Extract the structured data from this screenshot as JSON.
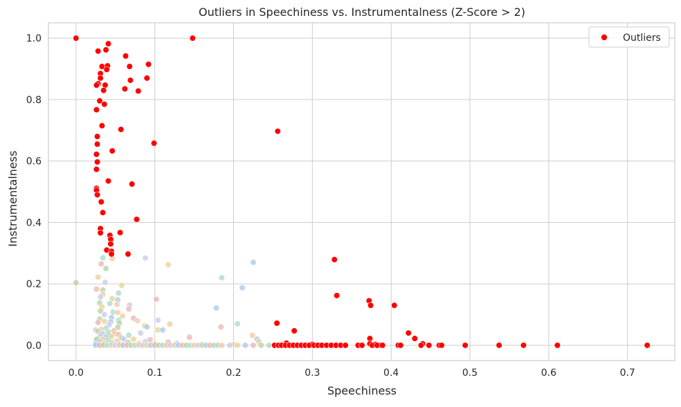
{
  "chart_data": {
    "type": "scatter",
    "title": "Outliers in Speechiness vs. Instrumentalness (Z-Score > 2)",
    "xlabel": "Speechiness",
    "ylabel": "Instrumentalness",
    "xlim": [
      -0.035,
      0.76
    ],
    "ylim": [
      -0.05,
      1.05
    ],
    "xticks": [
      "0.0",
      "0.1",
      "0.2",
      "0.3",
      "0.4",
      "0.5",
      "0.6",
      "0.7"
    ],
    "yticks": [
      "0.0",
      "0.2",
      "0.4",
      "0.6",
      "0.8",
      "1.0"
    ],
    "grid": true,
    "legend": {
      "position": "top-right",
      "entries": [
        "Outliers"
      ]
    },
    "colors": {
      "outliers": "#ff0000",
      "background_points": [
        "#b5d0a0",
        "#a8d8c8",
        "#f0c8a0",
        "#c8c8f0",
        "#e8d090",
        "#a8c8e8",
        "#f0b0b0"
      ]
    },
    "series": [
      {
        "name": "Outliers",
        "color": "#ff0000",
        "points": [
          [
            0.0,
            1.0
          ],
          [
            0.148,
            1.0
          ],
          [
            0.041,
            0.982
          ],
          [
            0.028,
            0.958
          ],
          [
            0.038,
            0.962
          ],
          [
            0.063,
            0.942
          ],
          [
            0.092,
            0.915
          ],
          [
            0.068,
            0.908
          ],
          [
            0.033,
            0.908
          ],
          [
            0.04,
            0.91
          ],
          [
            0.039,
            0.898
          ],
          [
            0.031,
            0.885
          ],
          [
            0.031,
            0.87
          ],
          [
            0.09,
            0.87
          ],
          [
            0.069,
            0.863
          ],
          [
            0.028,
            0.852
          ],
          [
            0.026,
            0.847
          ],
          [
            0.037,
            0.847
          ],
          [
            0.062,
            0.835
          ],
          [
            0.035,
            0.83
          ],
          [
            0.079,
            0.828
          ],
          [
            0.03,
            0.796
          ],
          [
            0.036,
            0.785
          ],
          [
            0.026,
            0.767
          ],
          [
            0.033,
            0.715
          ],
          [
            0.057,
            0.703
          ],
          [
            0.256,
            0.697
          ],
          [
            0.027,
            0.68
          ],
          [
            0.099,
            0.658
          ],
          [
            0.027,
            0.655
          ],
          [
            0.046,
            0.633
          ],
          [
            0.026,
            0.622
          ],
          [
            0.027,
            0.597
          ],
          [
            0.026,
            0.573
          ],
          [
            0.041,
            0.535
          ],
          [
            0.071,
            0.525
          ],
          [
            0.026,
            0.511
          ],
          [
            0.026,
            0.505
          ],
          [
            0.027,
            0.49
          ],
          [
            0.032,
            0.467
          ],
          [
            0.034,
            0.432
          ],
          [
            0.077,
            0.41
          ],
          [
            0.031,
            0.38
          ],
          [
            0.056,
            0.367
          ],
          [
            0.031,
            0.366
          ],
          [
            0.043,
            0.358
          ],
          [
            0.044,
            0.345
          ],
          [
            0.044,
            0.33
          ],
          [
            0.039,
            0.31
          ],
          [
            0.045,
            0.306
          ],
          [
            0.045,
            0.297
          ],
          [
            0.066,
            0.297
          ],
          [
            0.328,
            0.279
          ],
          [
            0.331,
            0.162
          ],
          [
            0.372,
            0.145
          ],
          [
            0.374,
            0.13
          ],
          [
            0.404,
            0.13
          ],
          [
            0.255,
            0.072
          ],
          [
            0.277,
            0.047
          ],
          [
            0.422,
            0.04
          ],
          [
            0.43,
            0.022
          ],
          [
            0.373,
            0.022
          ],
          [
            0.267,
            0.007
          ],
          [
            0.386,
            0.0
          ],
          [
            0.3,
            0.003
          ],
          [
            0.373,
            0.005
          ],
          [
            0.44,
            0.005
          ],
          [
            0.38,
            0.003
          ],
          [
            0.252,
            0.0
          ],
          [
            0.257,
            0.0
          ],
          [
            0.261,
            0.0
          ],
          [
            0.266,
            0.0
          ],
          [
            0.271,
            0.0
          ],
          [
            0.276,
            0.0
          ],
          [
            0.281,
            0.0
          ],
          [
            0.286,
            0.0
          ],
          [
            0.291,
            0.0
          ],
          [
            0.296,
            0.0
          ],
          [
            0.302,
            0.0
          ],
          [
            0.307,
            0.0
          ],
          [
            0.312,
            0.0
          ],
          [
            0.318,
            0.0
          ],
          [
            0.324,
            0.0
          ],
          [
            0.33,
            0.0
          ],
          [
            0.336,
            0.0
          ],
          [
            0.342,
            0.0
          ],
          [
            0.358,
            0.0
          ],
          [
            0.363,
            0.0
          ],
          [
            0.376,
            0.0
          ],
          [
            0.382,
            0.0
          ],
          [
            0.389,
            0.0
          ],
          [
            0.409,
            0.0
          ],
          [
            0.412,
            0.0
          ],
          [
            0.438,
            0.0
          ],
          [
            0.448,
            0.0
          ],
          [
            0.461,
            0.0
          ],
          [
            0.464,
            0.0
          ],
          [
            0.494,
            0.0
          ],
          [
            0.537,
            0.0
          ],
          [
            0.568,
            0.0
          ],
          [
            0.611,
            0.0
          ],
          [
            0.725,
            0.0
          ]
        ]
      },
      {
        "name": "",
        "color": "mixed",
        "points": [
          [
            0.0,
            0.204
          ],
          [
            0.034,
            0.285
          ],
          [
            0.046,
            0.282
          ],
          [
            0.088,
            0.284
          ],
          [
            0.117,
            0.262
          ],
          [
            0.225,
            0.27
          ],
          [
            0.032,
            0.265
          ],
          [
            0.038,
            0.25
          ],
          [
            0.185,
            0.22
          ],
          [
            0.028,
            0.222
          ],
          [
            0.037,
            0.205
          ],
          [
            0.058,
            0.195
          ],
          [
            0.211,
            0.187
          ],
          [
            0.026,
            0.183
          ],
          [
            0.034,
            0.18
          ],
          [
            0.054,
            0.17
          ],
          [
            0.034,
            0.165
          ],
          [
            0.031,
            0.157
          ],
          [
            0.046,
            0.152
          ],
          [
            0.053,
            0.148
          ],
          [
            0.102,
            0.15
          ],
          [
            0.03,
            0.138
          ],
          [
            0.043,
            0.136
          ],
          [
            0.052,
            0.133
          ],
          [
            0.068,
            0.131
          ],
          [
            0.033,
            0.125
          ],
          [
            0.178,
            0.121
          ],
          [
            0.067,
            0.118
          ],
          [
            0.031,
            0.112
          ],
          [
            0.047,
            0.108
          ],
          [
            0.053,
            0.107
          ],
          [
            0.036,
            0.1
          ],
          [
            0.059,
            0.095
          ],
          [
            0.045,
            0.09
          ],
          [
            0.073,
            0.088
          ],
          [
            0.03,
            0.085
          ],
          [
            0.054,
            0.082
          ],
          [
            0.078,
            0.08
          ],
          [
            0.104,
            0.082
          ],
          [
            0.036,
            0.078
          ],
          [
            0.044,
            0.076
          ],
          [
            0.028,
            0.074
          ],
          [
            0.055,
            0.072
          ],
          [
            0.205,
            0.07
          ],
          [
            0.119,
            0.069
          ],
          [
            0.042,
            0.066
          ],
          [
            0.087,
            0.063
          ],
          [
            0.09,
            0.06
          ],
          [
            0.184,
            0.06
          ],
          [
            0.053,
            0.058
          ],
          [
            0.038,
            0.055
          ],
          [
            0.032,
            0.052
          ],
          [
            0.025,
            0.05
          ],
          [
            0.104,
            0.05
          ],
          [
            0.11,
            0.05
          ],
          [
            0.048,
            0.047
          ],
          [
            0.028,
            0.045
          ],
          [
            0.041,
            0.043
          ],
          [
            0.031,
            0.04
          ],
          [
            0.082,
            0.04
          ],
          [
            0.049,
            0.038
          ],
          [
            0.034,
            0.036
          ],
          [
            0.054,
            0.035
          ],
          [
            0.042,
            0.033
          ],
          [
            0.067,
            0.033
          ],
          [
            0.224,
            0.032
          ],
          [
            0.031,
            0.03
          ],
          [
            0.045,
            0.028
          ],
          [
            0.038,
            0.026
          ],
          [
            0.144,
            0.026
          ],
          [
            0.058,
            0.024
          ],
          [
            0.027,
            0.022
          ],
          [
            0.034,
            0.02
          ],
          [
            0.061,
            0.02
          ],
          [
            0.073,
            0.02
          ],
          [
            0.23,
            0.02
          ],
          [
            0.094,
            0.018
          ],
          [
            0.026,
            0.018
          ],
          [
            0.041,
            0.016
          ],
          [
            0.052,
            0.014
          ],
          [
            0.088,
            0.012
          ],
          [
            0.232,
            0.012
          ],
          [
            0.03,
            0.01
          ],
          [
            0.117,
            0.01
          ],
          [
            0.066,
            0.009
          ],
          [
            0.045,
            0.008
          ],
          [
            0.036,
            0.007
          ],
          [
            0.128,
            0.006
          ],
          [
            0.08,
            0.006
          ],
          [
            0.025,
            0.005
          ],
          [
            0.055,
            0.004
          ],
          [
            0.1,
            0.004
          ],
          [
            0.16,
            0.003
          ],
          [
            0.2,
            0.002
          ],
          [
            0.03,
            0.001
          ],
          [
            0.06,
            0.001
          ],
          [
            0.025,
            0.0
          ],
          [
            0.03,
            0.0
          ],
          [
            0.035,
            0.0
          ],
          [
            0.04,
            0.0
          ],
          [
            0.045,
            0.0
          ],
          [
            0.05,
            0.0
          ],
          [
            0.055,
            0.0
          ],
          [
            0.06,
            0.0
          ],
          [
            0.065,
            0.0
          ],
          [
            0.07,
            0.0
          ],
          [
            0.075,
            0.0
          ],
          [
            0.08,
            0.0
          ],
          [
            0.085,
            0.0
          ],
          [
            0.09,
            0.0
          ],
          [
            0.095,
            0.0
          ],
          [
            0.1,
            0.0
          ],
          [
            0.105,
            0.0
          ],
          [
            0.11,
            0.0
          ],
          [
            0.115,
            0.0
          ],
          [
            0.12,
            0.0
          ],
          [
            0.125,
            0.0
          ],
          [
            0.13,
            0.0
          ],
          [
            0.135,
            0.0
          ],
          [
            0.14,
            0.0
          ],
          [
            0.145,
            0.0
          ],
          [
            0.15,
            0.0
          ],
          [
            0.155,
            0.0
          ],
          [
            0.16,
            0.0
          ],
          [
            0.165,
            0.0
          ],
          [
            0.17,
            0.0
          ],
          [
            0.175,
            0.0
          ],
          [
            0.18,
            0.0
          ],
          [
            0.185,
            0.0
          ],
          [
            0.195,
            0.0
          ],
          [
            0.205,
            0.0
          ],
          [
            0.215,
            0.0
          ],
          [
            0.225,
            0.0
          ],
          [
            0.235,
            0.0
          ],
          [
            0.245,
            0.0
          ]
        ]
      }
    ]
  }
}
